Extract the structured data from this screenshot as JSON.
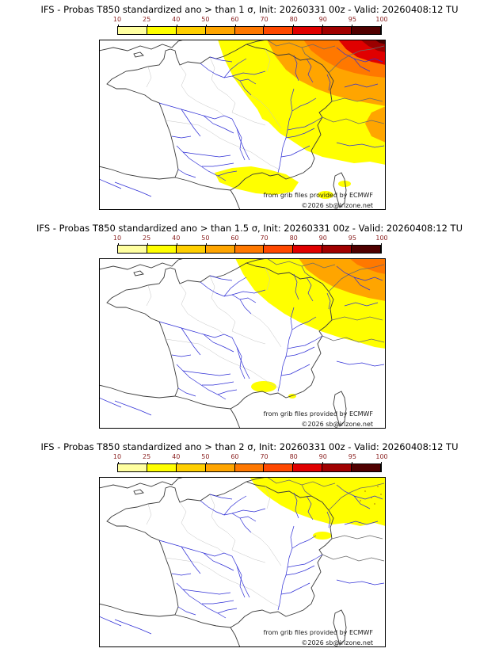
{
  "colors": {
    "yellow": "#ffff00",
    "orange": "#ffa500",
    "dark_orange": "#ff7800",
    "red": "#e00000",
    "dark_red": "#9b0000",
    "darkest_red": "#4a0000",
    "dot": "#b8860b"
  },
  "colorbar": {
    "tick_labels": [
      "10",
      "25",
      "40",
      "50",
      "60",
      "70",
      "80",
      "90",
      "95",
      "100"
    ],
    "segment_colors": [
      "#ffffa0",
      "#ffff00",
      "#ffcf00",
      "#ffa500",
      "#ff7800",
      "#ff4800",
      "#e00000",
      "#a00000",
      "#500000"
    ]
  },
  "panels": [
    {
      "title": "IFS - Probas T850  standardized ano > than 1 σ, Init: 20260331 00z - Valid: 20260408:12 TU",
      "credit_ecmwf": "from grib files provided by ECMWF",
      "credit_copyright": "©2026 sb@irizone.net"
    },
    {
      "title": "IFS - Probas T850  standardized ano > than 1.5 σ, Init: 20260331 00z - Valid: 20260408:12 TU",
      "credit_ecmwf": "from grib files provided by ECMWF",
      "credit_copyright": "©2026 sb@irizone.net"
    },
    {
      "title": "IFS - Probas T850  standardized ano > than 2 σ, Init: 20260331 00z - Valid: 20260408:12 TU",
      "credit_ecmwf": "from grib files provided by ECMWF",
      "credit_copyright": "©2026 sb@irizone.net"
    }
  ]
}
